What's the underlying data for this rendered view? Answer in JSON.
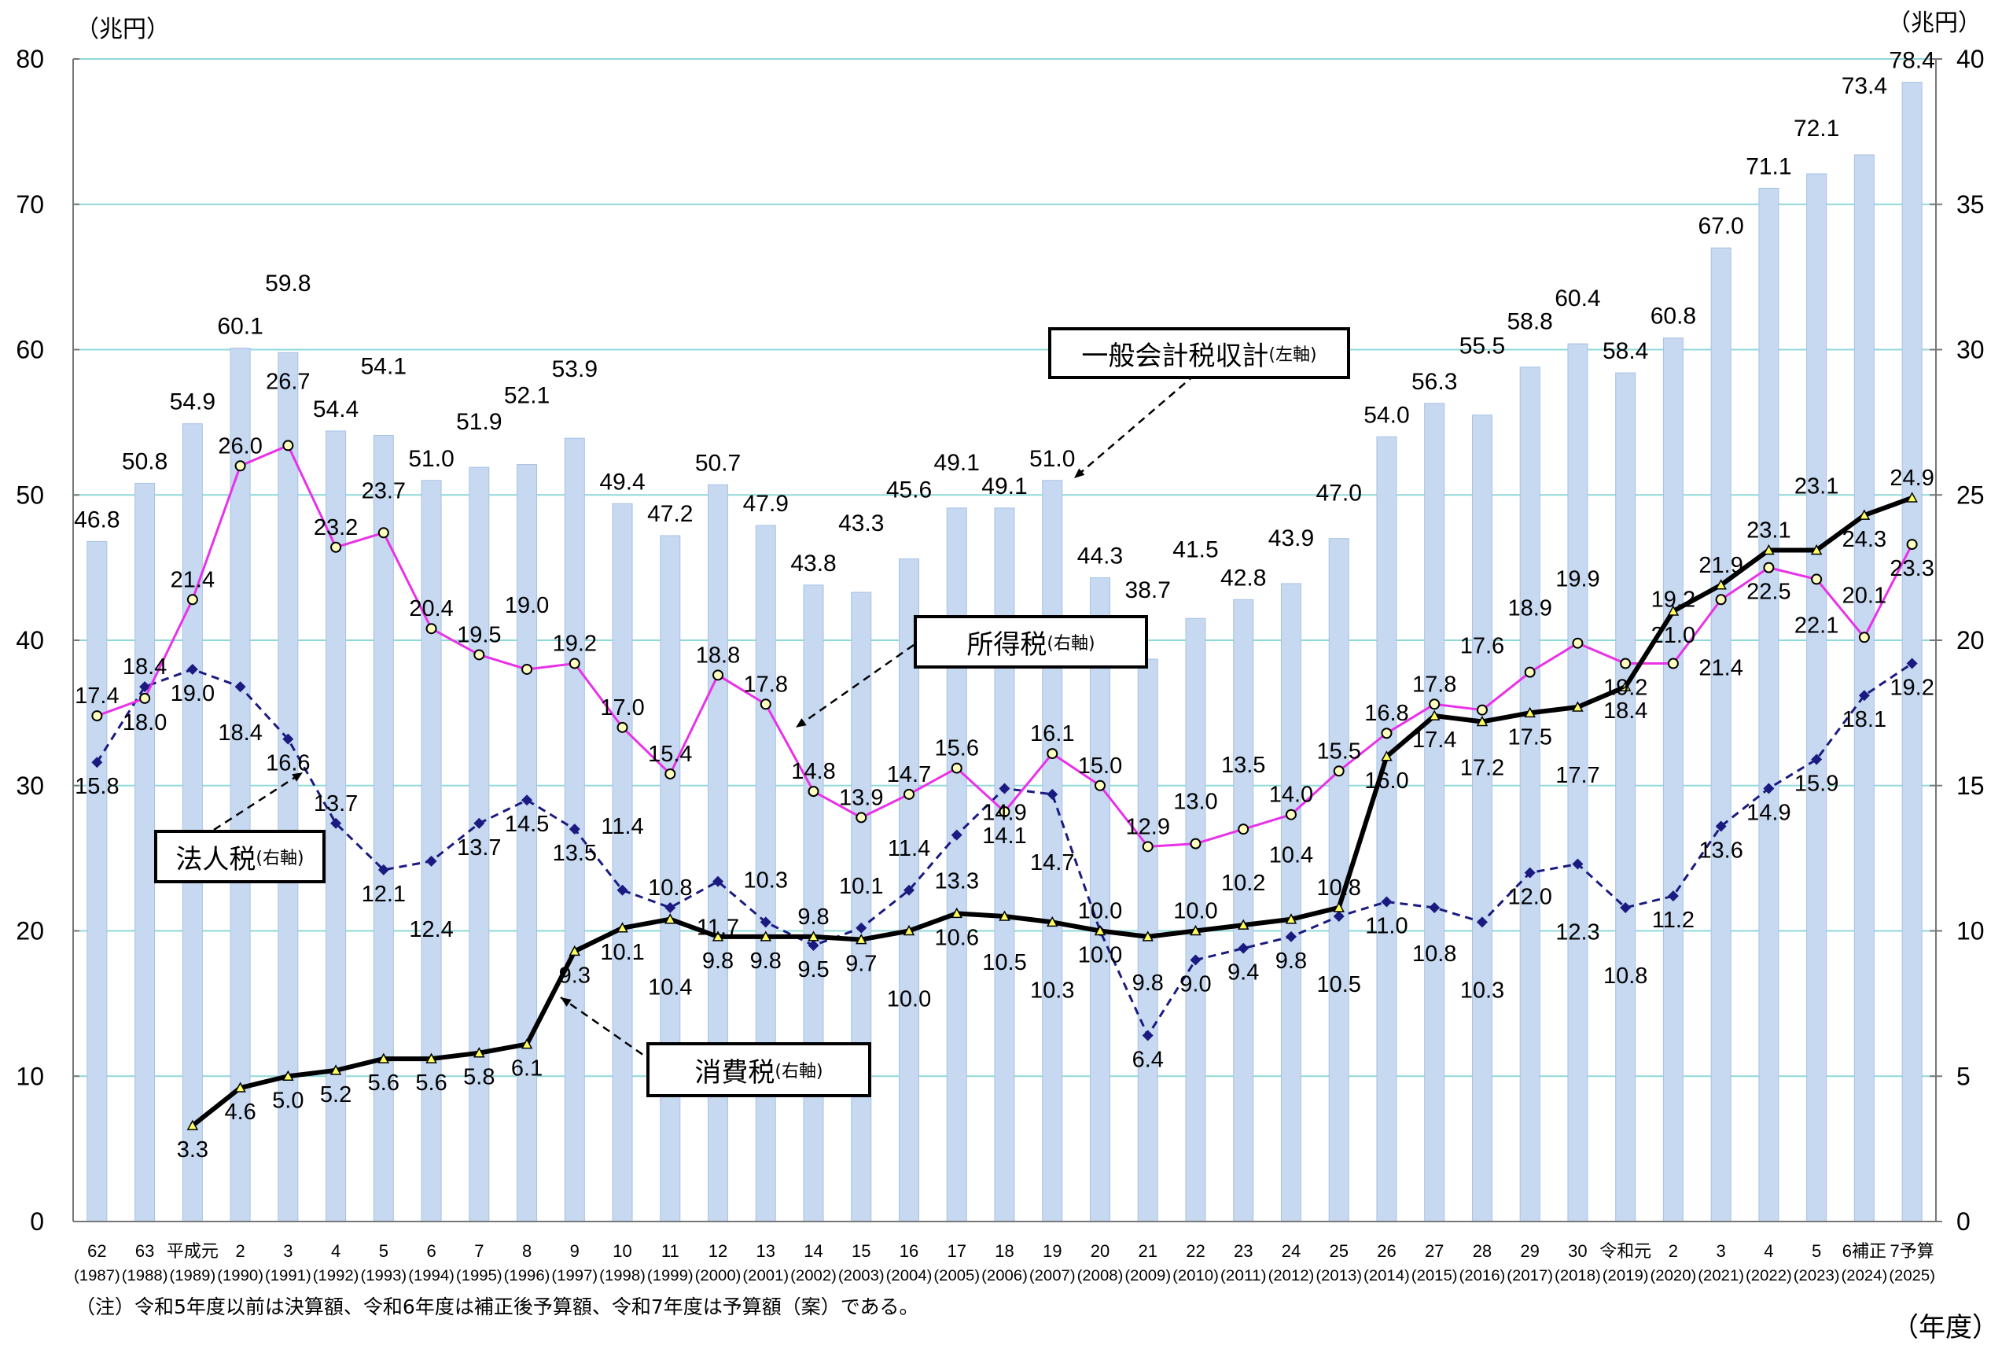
{
  "unit_labels": {
    "left": "（兆円）",
    "right": "（兆円）",
    "x_unit": "（年度）"
  },
  "note": "（注）令和5年度以前は決算額、令和6年度は補正後予算額、令和7年度は予算額（案）である。",
  "callouts": {
    "total": {
      "name": "一般会計税収計",
      "axis": "(左軸)"
    },
    "income": {
      "name": "所得税",
      "axis": "(右軸)"
    },
    "corporate": {
      "name": "法人税",
      "axis": "(右軸)"
    },
    "consumption": {
      "name": "消費税",
      "axis": "(右軸)"
    }
  },
  "colors": {
    "bar": "#c6d9f1",
    "bar_edge": "#a8c1e4",
    "income": "#e831e8",
    "corporate": "#1a1a80",
    "consumption": "#000000",
    "marker_fill": "#ffffc0",
    "grid": "#8fd8d8"
  },
  "chart_data": {
    "type": "bar",
    "title": "",
    "xlabel": "（年度）",
    "ylabel_left": "（兆円）",
    "ylabel_right": "（兆円）",
    "ylim_left": [
      0,
      80
    ],
    "ylim_right": [
      0,
      40
    ],
    "yticks_left": [
      0,
      10,
      20,
      30,
      40,
      50,
      60,
      70,
      80
    ],
    "yticks_right": [
      0,
      5,
      10,
      15,
      20,
      25,
      30,
      35,
      40
    ],
    "grid": true,
    "categories": [
      "62",
      "63",
      "平成元",
      "2",
      "3",
      "4",
      "5",
      "6",
      "7",
      "8",
      "9",
      "10",
      "11",
      "12",
      "13",
      "14",
      "15",
      "16",
      "17",
      "18",
      "19",
      "20",
      "21",
      "22",
      "23",
      "24",
      "25",
      "26",
      "27",
      "28",
      "29",
      "30",
      "令和元",
      "2",
      "3",
      "4",
      "5",
      "6補正",
      "7予算"
    ],
    "categories_western": [
      "(1987)",
      "(1988)",
      "(1989)",
      "(1990)",
      "(1991)",
      "(1992)",
      "(1993)",
      "(1994)",
      "(1995)",
      "(1996)",
      "(1997)",
      "(1998)",
      "(1999)",
      "(2000)",
      "(2001)",
      "(2002)",
      "(2003)",
      "(2004)",
      "(2005)",
      "(2006)",
      "(2007)",
      "(2008)",
      "(2009)",
      "(2010)",
      "(2011)",
      "(2012)",
      "(2013)",
      "(2014)",
      "(2015)",
      "(2016)",
      "(2017)",
      "(2018)",
      "(2019)",
      "(2020)",
      "(2021)",
      "(2022)",
      "(2023)",
      "(2024)",
      "(2025)"
    ],
    "series": [
      {
        "name": "一般会計税収計",
        "axis": "left",
        "kind": "bar",
        "values": [
          46.8,
          50.8,
          54.9,
          60.1,
          59.8,
          54.4,
          54.1,
          51.0,
          51.9,
          52.1,
          53.9,
          49.4,
          47.2,
          50.7,
          47.9,
          43.8,
          43.3,
          45.6,
          49.1,
          49.1,
          51.0,
          44.3,
          38.7,
          41.5,
          42.8,
          43.9,
          47.0,
          54.0,
          56.3,
          55.5,
          58.8,
          60.4,
          58.4,
          60.8,
          67.0,
          71.1,
          72.1,
          73.4,
          78.4
        ]
      },
      {
        "name": "所得税",
        "axis": "right",
        "kind": "line",
        "values": [
          17.4,
          18.0,
          21.4,
          26.0,
          26.7,
          23.2,
          23.7,
          20.4,
          19.5,
          19.0,
          19.2,
          17.0,
          15.4,
          18.8,
          17.8,
          14.8,
          13.9,
          14.7,
          15.6,
          14.1,
          16.1,
          15.0,
          12.9,
          13.0,
          13.5,
          14.0,
          15.5,
          16.8,
          17.8,
          17.6,
          18.9,
          19.9,
          19.2,
          19.2,
          21.4,
          22.5,
          22.1,
          20.1,
          23.3
        ]
      },
      {
        "name": "法人税",
        "axis": "right",
        "kind": "line",
        "values": [
          15.8,
          18.4,
          19.0,
          18.4,
          16.6,
          13.7,
          12.1,
          12.4,
          13.7,
          14.5,
          13.5,
          11.4,
          10.8,
          11.7,
          10.3,
          9.5,
          10.1,
          11.4,
          13.3,
          14.9,
          14.7,
          10.0,
          6.4,
          9.0,
          9.4,
          9.8,
          10.5,
          11.0,
          10.8,
          10.3,
          12.0,
          12.3,
          10.8,
          11.2,
          13.6,
          14.9,
          15.9,
          18.1,
          19.2
        ]
      },
      {
        "name": "消費税",
        "axis": "right",
        "kind": "line",
        "values": [
          null,
          null,
          3.3,
          4.6,
          5.0,
          5.2,
          5.6,
          5.6,
          5.8,
          6.1,
          9.3,
          10.1,
          10.4,
          9.8,
          9.8,
          9.8,
          9.7,
          10.0,
          10.6,
          10.5,
          10.3,
          10.0,
          9.8,
          10.0,
          10.2,
          10.4,
          10.8,
          16.0,
          17.4,
          17.2,
          17.5,
          17.7,
          18.4,
          21.0,
          21.9,
          23.1,
          23.1,
          24.3,
          24.9
        ]
      }
    ],
    "legend": "callout-boxes"
  }
}
